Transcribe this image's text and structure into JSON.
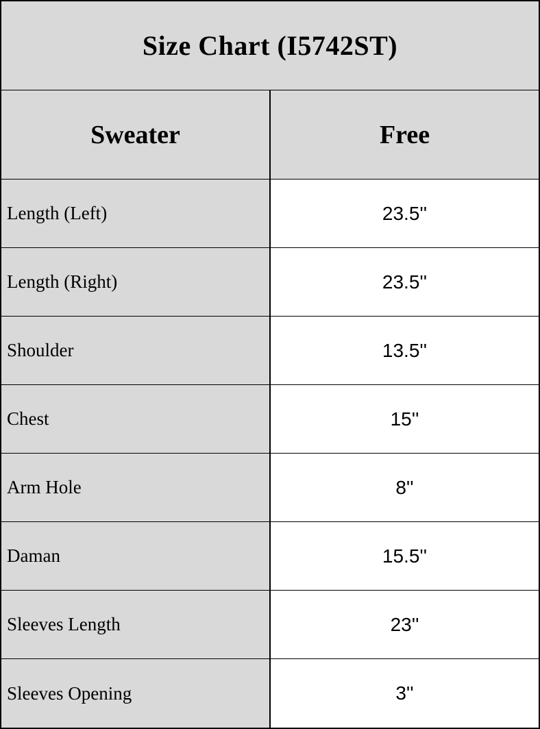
{
  "table": {
    "title": "Size Chart (I5742ST)",
    "header": {
      "item_col": "Sweater",
      "size_col": "Free"
    },
    "rows": [
      {
        "label": "Length (Left)",
        "value": "23.5''"
      },
      {
        "label": "Length (Right)",
        "value": "23.5''"
      },
      {
        "label": "Shoulder",
        "value": "13.5''"
      },
      {
        "label": "Chest",
        "value": "15''"
      },
      {
        "label": "Arm Hole",
        "value": "8''"
      },
      {
        "label": "Daman",
        "value": "15.5''"
      },
      {
        "label": "Sleeves Length",
        "value": "23''"
      },
      {
        "label": "Sleeves Opening",
        "value": "3''"
      }
    ]
  },
  "colors": {
    "label_bg": "#d9d9d9",
    "value_bg": "#ffffff",
    "border": "#000000",
    "text": "#000000"
  },
  "chart_data": {
    "type": "table",
    "title": "Size Chart (I5742ST)",
    "columns": [
      "Sweater",
      "Free"
    ],
    "rows": [
      [
        "Length (Left)",
        "23.5''"
      ],
      [
        "Length (Right)",
        "23.5''"
      ],
      [
        "Shoulder",
        "13.5''"
      ],
      [
        "Chest",
        "15''"
      ],
      [
        "Arm Hole",
        "8''"
      ],
      [
        "Daman",
        "15.5''"
      ],
      [
        "Sleeves Length",
        "23''"
      ],
      [
        "Sleeves Opening",
        "3''"
      ]
    ]
  }
}
